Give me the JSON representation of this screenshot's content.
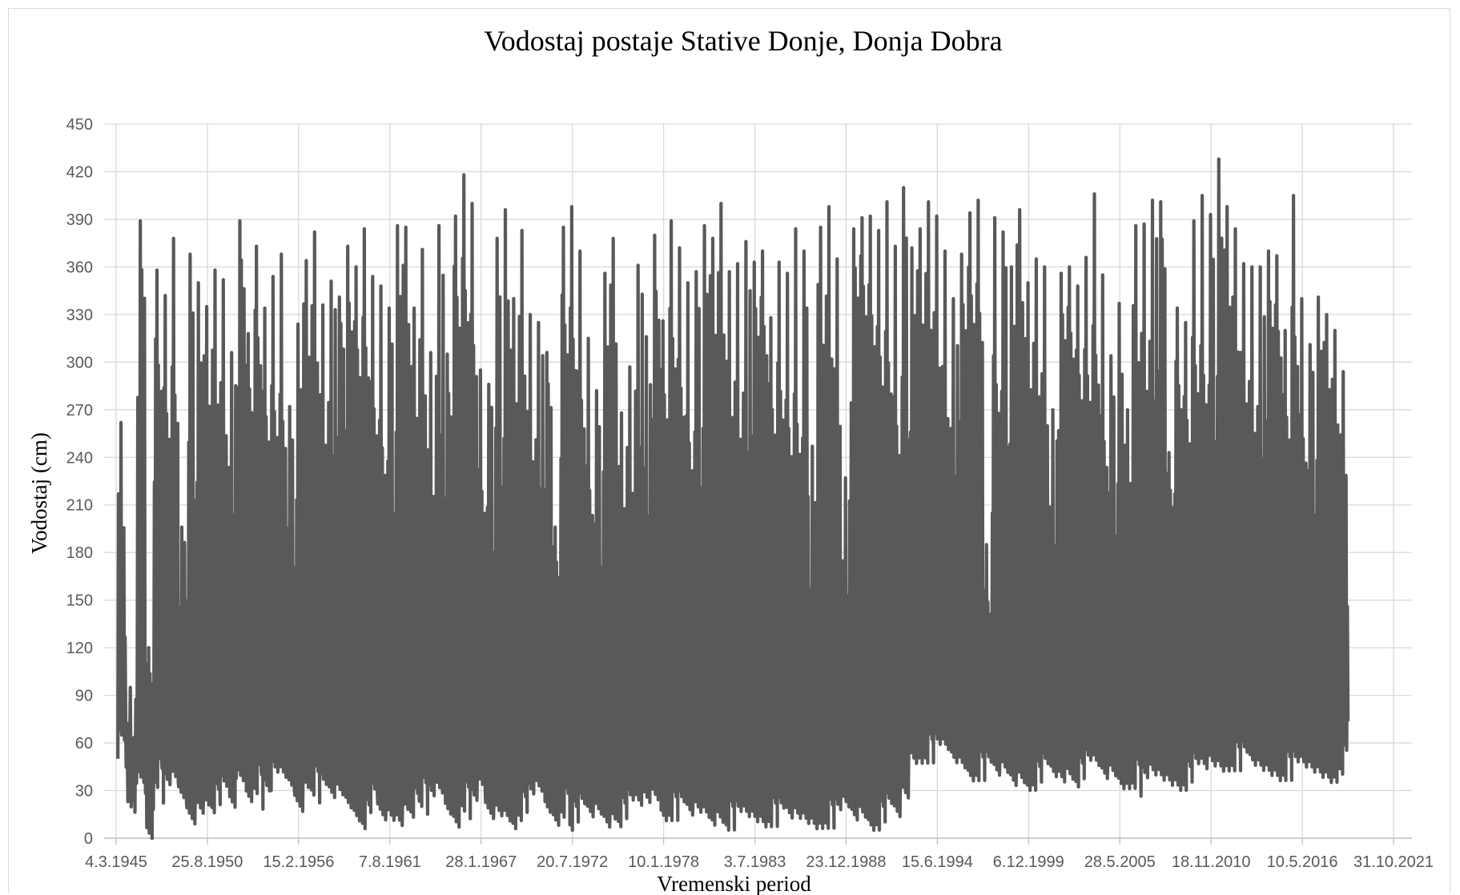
{
  "chart_data": {
    "type": "line",
    "title": "Vodostaj postaje Stative Donje, Donja Dobra",
    "xlabel": "Vremenski period",
    "ylabel": "Vodostaj (cm)",
    "x_tick_labels": [
      "4.3.1945",
      "25.8.1950",
      "15.2.1956",
      "7.8.1961",
      "28.1.1967",
      "20.7.1972",
      "10.1.1978",
      "3.7.1983",
      "23.12.1988",
      "15.6.1994",
      "6.12.1999",
      "28.5.2005",
      "18.11.2010",
      "10.5.2016",
      "31.10.2021"
    ],
    "x_range": [
      "1945-03-04",
      "2023-12-31"
    ],
    "y_ticks": [
      0,
      30,
      60,
      90,
      120,
      150,
      180,
      210,
      240,
      270,
      300,
      330,
      360,
      390,
      420,
      450
    ],
    "ylim": [
      0,
      450
    ],
    "grid": true,
    "legend": "none",
    "series": [
      {
        "color": "#595959",
        "points": [
          [
            "1946-01",
            50,
            262
          ],
          [
            "1946-07",
            8,
            95
          ],
          [
            "1947-03",
            30,
            389
          ],
          [
            "1947-09",
            -2,
            120
          ],
          [
            "1948-03",
            30,
            358
          ],
          [
            "1948-09",
            20,
            342
          ],
          [
            "1949-03",
            25,
            378
          ],
          [
            "1949-09",
            15,
            196
          ],
          [
            "1950-03",
            5,
            368
          ],
          [
            "1950-09",
            15,
            350
          ],
          [
            "1951-03",
            20,
            335
          ],
          [
            "1951-09",
            15,
            358
          ],
          [
            "1952-03",
            20,
            352
          ],
          [
            "1952-09",
            10,
            306
          ],
          [
            "1953-03",
            30,
            389
          ],
          [
            "1953-09",
            20,
            318
          ],
          [
            "1954-03",
            25,
            373
          ],
          [
            "1954-09",
            15,
            334
          ],
          [
            "1955-03",
            30,
            354
          ],
          [
            "1955-09",
            30,
            368
          ],
          [
            "1956-03",
            25,
            272
          ],
          [
            "1956-09",
            15,
            324
          ],
          [
            "1957-03",
            30,
            364
          ],
          [
            "1957-09",
            25,
            382
          ],
          [
            "1958-03",
            20,
            336
          ],
          [
            "1958-09",
            15,
            351
          ],
          [
            "1959-03",
            20,
            341
          ],
          [
            "1959-09",
            15,
            373
          ],
          [
            "1960-03",
            10,
            360
          ],
          [
            "1960-09",
            5,
            384
          ],
          [
            "1961-03",
            15,
            354
          ],
          [
            "1961-09",
            2,
            348
          ],
          [
            "1962-03",
            5,
            334
          ],
          [
            "1962-09",
            5,
            386
          ],
          [
            "1963-03",
            15,
            385
          ],
          [
            "1963-09",
            10,
            334
          ],
          [
            "1964-03",
            20,
            371
          ],
          [
            "1964-09",
            15,
            306
          ],
          [
            "1965-03",
            20,
            386
          ],
          [
            "1965-09",
            10,
            305
          ],
          [
            "1966-03",
            5,
            392
          ],
          [
            "1966-09",
            15,
            418
          ],
          [
            "1967-03",
            10,
            400
          ],
          [
            "1967-09",
            20,
            295
          ],
          [
            "1968-03",
            5,
            286
          ],
          [
            "1968-09",
            10,
            378
          ],
          [
            "1969-03",
            10,
            396
          ],
          [
            "1969-09",
            5,
            340
          ],
          [
            "1970-03",
            10,
            383
          ],
          [
            "1970-09",
            15,
            330
          ],
          [
            "1971-03",
            20,
            325
          ],
          [
            "1971-09",
            10,
            306
          ],
          [
            "1972-03",
            5,
            196
          ],
          [
            "1972-09",
            10,
            385
          ],
          [
            "1973-03",
            5,
            398
          ],
          [
            "1973-09",
            10,
            370
          ],
          [
            "1974-03",
            5,
            315
          ],
          [
            "1974-09",
            10,
            282
          ],
          [
            "1975-03",
            5,
            356
          ],
          [
            "1975-09",
            10,
            378
          ],
          [
            "1976-03",
            5,
            268
          ],
          [
            "1976-09",
            10,
            297
          ],
          [
            "1977-03",
            10,
            361
          ],
          [
            "1977-09",
            15,
            316
          ],
          [
            "1978-03",
            20,
            380
          ],
          [
            "1978-09",
            10,
            326
          ],
          [
            "1979-03",
            10,
            389
          ],
          [
            "1979-09",
            10,
            372
          ],
          [
            "1980-03",
            5,
            350
          ],
          [
            "1980-09",
            10,
            357
          ],
          [
            "1981-03",
            10,
            386
          ],
          [
            "1981-09",
            5,
            378
          ],
          [
            "1982-03",
            10,
            400
          ],
          [
            "1982-09",
            5,
            357
          ],
          [
            "1983-03",
            5,
            362
          ],
          [
            "1983-09",
            5,
            376
          ],
          [
            "1984-03",
            5,
            363
          ],
          [
            "1984-09",
            5,
            370
          ],
          [
            "1985-03",
            5,
            328
          ],
          [
            "1985-09",
            5,
            363
          ],
          [
            "1986-03",
            2,
            356
          ],
          [
            "1986-09",
            5,
            384
          ],
          [
            "1987-03",
            5,
            370
          ],
          [
            "1987-09",
            5,
            247
          ],
          [
            "1988-03",
            5,
            385
          ],
          [
            "1988-09",
            5,
            398
          ],
          [
            "1989-03",
            5,
            365
          ],
          [
            "1989-09",
            10,
            227
          ],
          [
            "1990-03",
            5,
            384
          ],
          [
            "1990-09",
            10,
            391
          ],
          [
            "1991-03",
            5,
            392
          ],
          [
            "1991-09",
            5,
            383
          ],
          [
            "1992-03",
            10,
            401
          ],
          [
            "1992-09",
            5,
            373
          ],
          [
            "1993-03",
            20,
            410
          ],
          [
            "1993-09",
            45,
            372
          ],
          [
            "1994-03",
            45,
            384
          ],
          [
            "1994-09",
            45,
            401
          ],
          [
            "1995-03",
            45,
            392
          ],
          [
            "1995-09",
            45,
            370
          ],
          [
            "1996-03",
            40,
            340
          ],
          [
            "1996-09",
            40,
            368
          ],
          [
            "1997-03",
            35,
            394
          ],
          [
            "1997-09",
            35,
            402
          ],
          [
            "1998-03",
            35,
            185
          ],
          [
            "1998-09",
            30,
            391
          ],
          [
            "1999-03",
            35,
            382
          ],
          [
            "1999-09",
            30,
            360
          ],
          [
            "2000-03",
            35,
            396
          ],
          [
            "2000-09",
            30,
            350
          ],
          [
            "2001-03",
            30,
            365
          ],
          [
            "2001-09",
            35,
            360
          ],
          [
            "2002-03",
            30,
            270
          ],
          [
            "2002-09",
            30,
            356
          ],
          [
            "2003-03",
            35,
            360
          ],
          [
            "2003-09",
            30,
            348
          ],
          [
            "2004-03",
            35,
            366
          ],
          [
            "2004-09",
            35,
            406
          ],
          [
            "2005-03",
            30,
            355
          ],
          [
            "2005-09",
            35,
            304
          ],
          [
            "2006-03",
            30,
            337
          ],
          [
            "2006-09",
            30,
            270
          ],
          [
            "2007-03",
            30,
            386
          ],
          [
            "2007-09",
            25,
            387
          ],
          [
            "2008-03",
            30,
            402
          ],
          [
            "2008-09",
            30,
            401
          ],
          [
            "2009-03",
            30,
            243
          ],
          [
            "2009-09",
            30,
            334
          ],
          [
            "2010-03",
            30,
            325
          ],
          [
            "2010-09",
            35,
            389
          ],
          [
            "2011-03",
            35,
            405
          ],
          [
            "2011-09",
            40,
            393
          ],
          [
            "2012-03",
            40,
            428
          ],
          [
            "2012-09",
            40,
            398
          ],
          [
            "2013-03",
            40,
            384
          ],
          [
            "2013-09",
            40,
            362
          ],
          [
            "2014-03",
            35,
            360
          ],
          [
            "2014-09",
            35,
            360
          ],
          [
            "2015-03",
            35,
            370
          ],
          [
            "2015-09",
            35,
            367
          ],
          [
            "2016-03",
            35,
            320
          ],
          [
            "2016-09",
            35,
            405
          ],
          [
            "2017-03",
            35,
            340
          ],
          [
            "2017-09",
            35,
            311
          ],
          [
            "2018-03",
            35,
            341
          ],
          [
            "2018-09",
            35,
            330
          ],
          [
            "2019-03",
            35,
            320
          ],
          [
            "2019-09",
            40,
            294
          ]
        ]
      }
    ]
  }
}
